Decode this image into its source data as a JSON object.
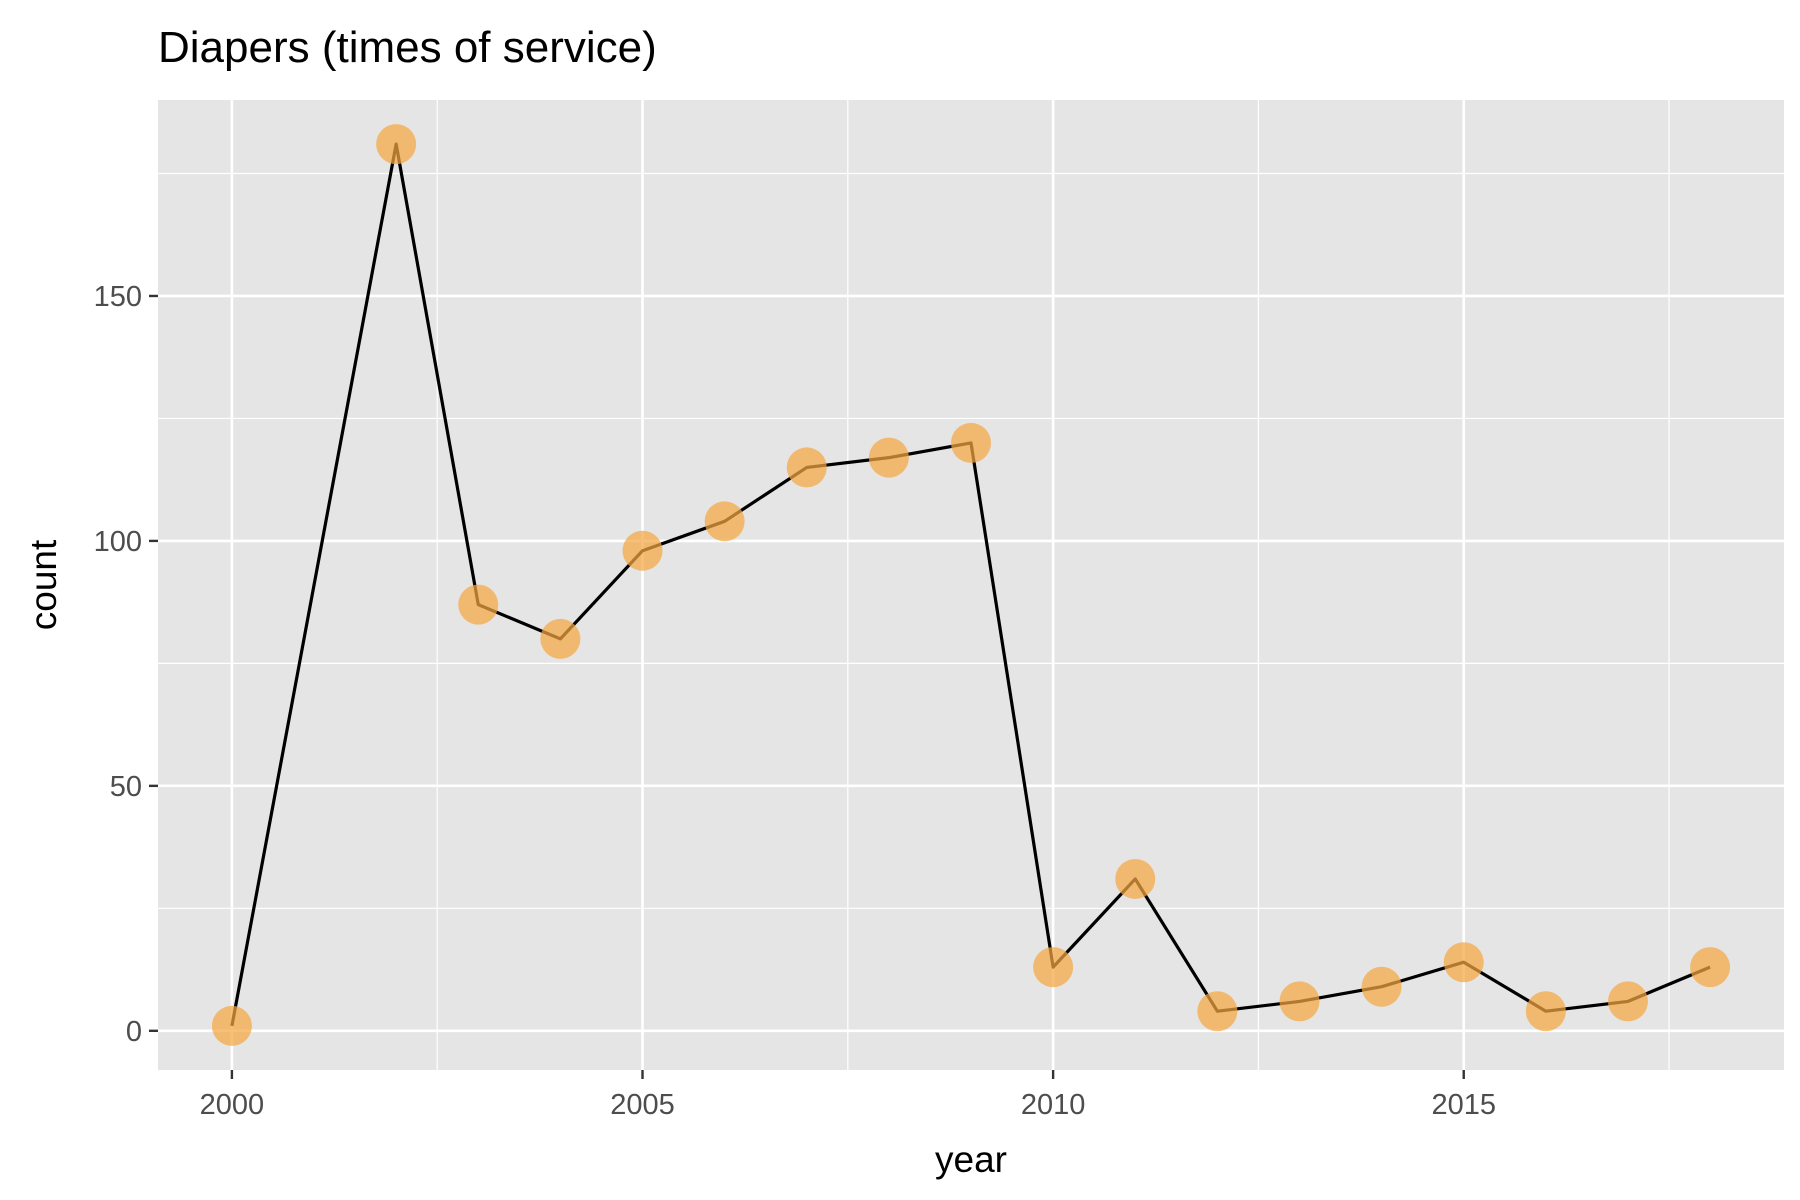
{
  "chart_data": {
    "type": "line",
    "title": "Diapers (times of service)",
    "xlabel": "year",
    "ylabel": "count",
    "x": [
      2000,
      2002,
      2003,
      2004,
      2005,
      2006,
      2007,
      2008,
      2009,
      2010,
      2011,
      2012,
      2013,
      2014,
      2015,
      2016,
      2017,
      2018
    ],
    "series": [
      {
        "values": [
          1,
          181,
          87,
          80,
          98,
          104,
          115,
          117,
          120,
          13,
          31,
          4,
          6,
          9,
          14,
          4,
          6,
          13
        ]
      }
    ],
    "xlim": [
      1999.1,
      2018.9
    ],
    "ylim": [
      -8,
      190
    ],
    "x_ticks": [
      2000,
      2005,
      2010,
      2015
    ],
    "x_tick_labels": [
      "2000",
      "2005",
      "2010",
      "2015"
    ],
    "y_ticks": [
      0,
      50,
      100,
      150
    ],
    "y_tick_labels": [
      "0",
      "50",
      "100",
      "150"
    ],
    "grid": true,
    "legend": "none",
    "colors": {
      "panel_background": "#e5e5e5",
      "grid": "#ffffff",
      "line": "#000000",
      "point": "#f5a742"
    }
  }
}
